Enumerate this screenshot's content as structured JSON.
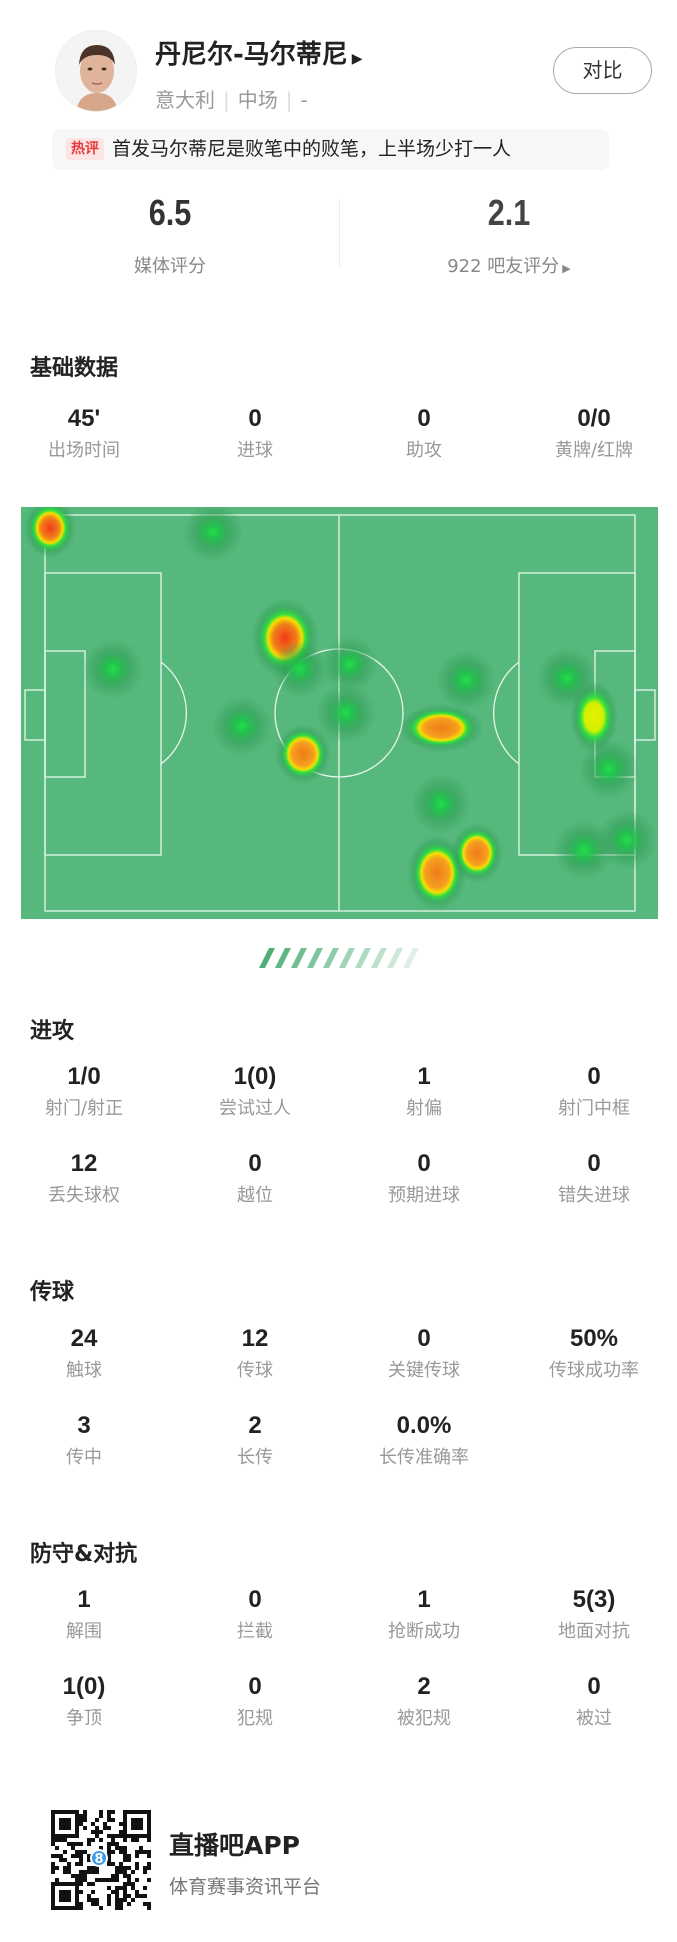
{
  "player": {
    "name": "丹尼尔-马尔蒂尼",
    "nationality": "意大利",
    "position": "中场",
    "number": "-",
    "compare_label": "对比"
  },
  "hot_comment": {
    "badge": "热评",
    "text": "首发马尔蒂尼是败笔中的败笔，上半场少打一人"
  },
  "ratings": {
    "media": {
      "value": "6.5",
      "label": "媒体评分"
    },
    "fans": {
      "value": "2.1",
      "label": "922 吧友评分"
    }
  },
  "sections": [
    {
      "title": "基础数据",
      "stats": [
        {
          "value": "45'",
          "label": "出场时间"
        },
        {
          "value": "0",
          "label": "进球"
        },
        {
          "value": "0",
          "label": "助攻"
        },
        {
          "value": "0/0",
          "label": "黄牌/红牌"
        }
      ]
    },
    {
      "title": "进攻",
      "stats": [
        {
          "value": "1/0",
          "label": "射门/射正"
        },
        {
          "value": "1(0)",
          "label": "尝试过人"
        },
        {
          "value": "1",
          "label": "射偏"
        },
        {
          "value": "0",
          "label": "射门中框"
        },
        {
          "value": "12",
          "label": "丢失球权"
        },
        {
          "value": "0",
          "label": "越位"
        },
        {
          "value": "0",
          "label": "预期进球"
        },
        {
          "value": "0",
          "label": "错失进球"
        }
      ]
    },
    {
      "title": "传球",
      "stats": [
        {
          "value": "24",
          "label": "触球"
        },
        {
          "value": "12",
          "label": "传球"
        },
        {
          "value": "0",
          "label": "关键传球"
        },
        {
          "value": "50%",
          "label": "传球成功率"
        },
        {
          "value": "3",
          "label": "传中"
        },
        {
          "value": "2",
          "label": "长传"
        },
        {
          "value": "0.0%",
          "label": "长传准确率"
        }
      ]
    },
    {
      "title": "防守&对抗",
      "stats": [
        {
          "value": "1",
          "label": "解围"
        },
        {
          "value": "0",
          "label": "拦截"
        },
        {
          "value": "1",
          "label": "抢断成功"
        },
        {
          "value": "5(3)",
          "label": "地面对抗"
        },
        {
          "value": "1(0)",
          "label": "争顶"
        },
        {
          "value": "0",
          "label": "犯规"
        },
        {
          "value": "2",
          "label": "被犯规"
        },
        {
          "value": "0",
          "label": "被过"
        }
      ]
    }
  ],
  "heatmap": {
    "pitch_color": "#56b87c",
    "line_color": "#e8f5ec",
    "icon": "heatmap-pitch"
  },
  "footer": {
    "app_name": "直播吧APP",
    "app_subtitle": "体育赛事资讯平台",
    "qr_icon": "qr-code-icon"
  },
  "colors": {
    "hot_badge": "#e83a3a",
    "arrow": "#4fae78"
  }
}
